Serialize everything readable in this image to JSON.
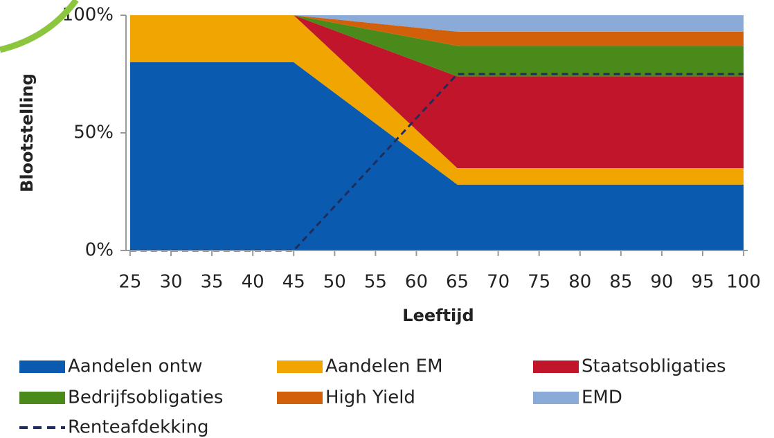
{
  "chart_data": {
    "type": "stacked-area",
    "x": [
      25,
      45,
      65,
      100
    ],
    "series": [
      {
        "name": "Aandelen ontw",
        "color": "#0a5ab0",
        "values": [
          80,
          80,
          28,
          28
        ]
      },
      {
        "name": "Aandelen EM",
        "color": "#f0a500",
        "values": [
          20,
          20,
          7,
          7
        ]
      },
      {
        "name": "Staatsobligaties",
        "color": "#c0152a",
        "values": [
          0,
          0,
          39,
          39
        ]
      },
      {
        "name": "Bedrijfsobligaties",
        "color": "#4a8a1a",
        "values": [
          0,
          0,
          13,
          13
        ]
      },
      {
        "name": "High Yield",
        "color": "#d2600a",
        "values": [
          0,
          0,
          6,
          6
        ]
      },
      {
        "name": "EMD",
        "color": "#8aaad8",
        "values": [
          0,
          0,
          7,
          7
        ]
      }
    ],
    "line": {
      "name": "Renteafdekking",
      "color": "#1f2d5a",
      "values": [
        0,
        0,
        75,
        75
      ]
    },
    "xlim": [
      24.5,
      100.5
    ],
    "xticks": [
      25,
      30,
      35,
      40,
      45,
      50,
      55,
      60,
      65,
      70,
      75,
      80,
      85,
      90,
      95,
      100
    ],
    "ylim": [
      0,
      100
    ],
    "yticks": [
      {
        "value": 0,
        "label": "0%"
      },
      {
        "value": 50,
        "label": "50%"
      },
      {
        "value": 100,
        "label": "100%"
      }
    ],
    "xlabel": "Leeftijd",
    "ylabel": "Blootstelling",
    "legend": "bottom"
  }
}
